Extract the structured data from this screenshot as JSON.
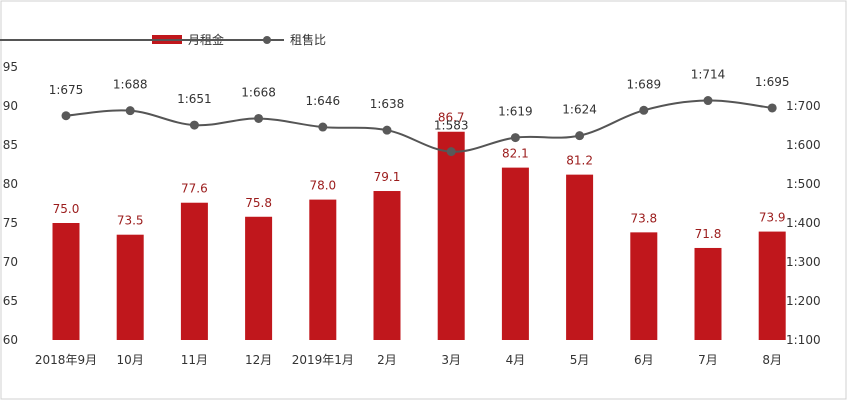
{
  "legend": {
    "bar_label": "月租金",
    "line_label": "租售比"
  },
  "colors": {
    "bar": "#c0171c",
    "line": "#555555",
    "marker": "#595959",
    "frame": "#d0d0d0"
  },
  "chart_data": {
    "type": "bar",
    "categories": [
      "2018年9月",
      "10月",
      "11月",
      "12月",
      "2019年1月",
      "2月",
      "3月",
      "4月",
      "5月",
      "6月",
      "7月",
      "8月"
    ],
    "series": [
      {
        "name": "月租金",
        "type": "bar",
        "axis": "left",
        "values": [
          75.0,
          73.5,
          77.6,
          75.8,
          78.0,
          79.1,
          86.7,
          82.1,
          81.2,
          73.8,
          71.8,
          73.9
        ],
        "labels": [
          "75.0",
          "73.5",
          "77.6",
          "75.8",
          "78.0",
          "79.1",
          "86.7",
          "82.1",
          "81.2",
          "73.8",
          "71.8",
          "73.9"
        ]
      },
      {
        "name": "租售比",
        "type": "line",
        "axis": "right",
        "values": [
          675,
          688,
          651,
          668,
          646,
          638,
          583,
          619,
          624,
          689,
          714,
          695
        ],
        "labels": [
          "1:675",
          "1:688",
          "1:651",
          "1:668",
          "1:646",
          "1:638",
          "1:583",
          "1:619",
          "1:624",
          "1:689",
          "1:714",
          "1:695"
        ]
      }
    ],
    "left_axis": {
      "range": [
        60,
        95
      ],
      "ticks": [
        60,
        65,
        70,
        75,
        80,
        85,
        90,
        95
      ],
      "tick_labels": [
        "60",
        "65",
        "70",
        "75",
        "80",
        "85",
        "90",
        "95"
      ]
    },
    "right_axis": {
      "range": [
        100,
        800
      ],
      "ticks": [
        100,
        200,
        300,
        400,
        500,
        600,
        700
      ],
      "tick_labels": [
        "1:100",
        "1:200",
        "1:300",
        "1:400",
        "1:500",
        "1:600",
        "1:700"
      ]
    },
    "grid": false,
    "legend_position": "top-left"
  }
}
